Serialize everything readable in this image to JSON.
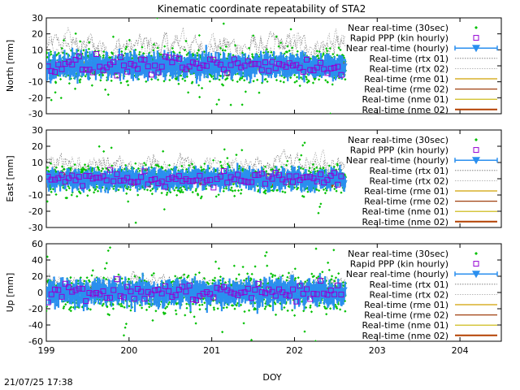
{
  "chart_data": {
    "type": "scatter",
    "title": "Kinematic coordinate repeatability of STA2",
    "xlabel": "DOY",
    "timestamp": "21/07/25 17:38",
    "xlim": [
      199,
      204.5
    ],
    "xticks": [
      199,
      200,
      201,
      202,
      203,
      204
    ],
    "grid": false,
    "legend_placement": "top-right",
    "legend": [
      {
        "name": "Near real-time (30sec)",
        "style": "points",
        "color": "#00c000"
      },
      {
        "name": "Rapid PPP (kin hourly)",
        "style": "open-square",
        "color": "#9400d3"
      },
      {
        "name": "Near real-time (hourly)",
        "style": "triangle-errorbar",
        "color": "#2a8fef"
      },
      {
        "name": "Real-time (rtx 01)",
        "style": "dotted",
        "color": "#707070"
      },
      {
        "name": "Real-time (rtx 02)",
        "style": "dotted",
        "color": "#a0a0a0"
      },
      {
        "name": "Real-time (rme 01)",
        "style": "line",
        "color": "#d0a000"
      },
      {
        "name": "Real-time (rme 02)",
        "style": "line",
        "color": "#a04010"
      },
      {
        "name": "Real-time (nme 01)",
        "style": "line",
        "color": "#c8b400"
      },
      {
        "name": "Real-time (nme 02)",
        "style": "line",
        "color": "#b44000"
      }
    ],
    "panels": [
      {
        "ylabel": "North [mm]",
        "ylim": [
          -30,
          30
        ],
        "yticks": [
          -30,
          -20,
          -10,
          0,
          10,
          20,
          30
        ],
        "amp": 7,
        "rtx_amp": 14,
        "rtx_offset": 12,
        "rme_amp": 5
      },
      {
        "ylabel": "East [mm]",
        "ylim": [
          -30,
          30
        ],
        "yticks": [
          -30,
          -20,
          -10,
          0,
          10,
          20,
          30
        ],
        "amp": 6,
        "rtx_amp": 12,
        "rtx_offset": 8,
        "rme_amp": 5
      },
      {
        "ylabel": "Up [mm]",
        "ylim": [
          -60,
          60
        ],
        "yticks": [
          -60,
          -40,
          -20,
          0,
          20,
          40,
          60
        ],
        "amp": 15,
        "rtx_amp": 18,
        "rtx_offset": 10,
        "rme_amp": 9
      }
    ]
  }
}
